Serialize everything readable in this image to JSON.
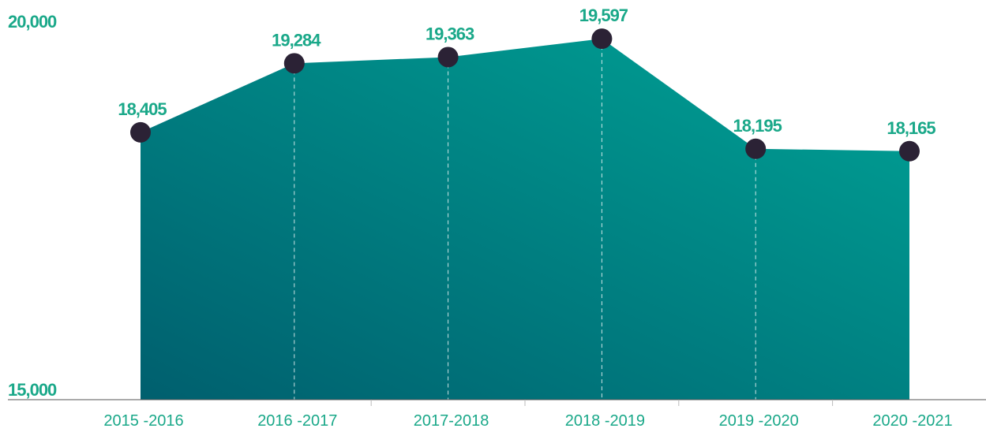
{
  "chart_data": {
    "type": "area",
    "categories": [
      "2015 -2016",
      "2016 -2017",
      "2017-2018",
      "2018 -2019",
      "2019 -2020",
      "2020 -2021"
    ],
    "values": [
      18405,
      19284,
      19363,
      19597,
      18195,
      18165
    ],
    "value_labels": [
      "18,405",
      "19,284",
      "19,363",
      "19,597",
      "18,195",
      "18,165"
    ],
    "ylim": [
      15000,
      20000
    ],
    "yticks": [
      {
        "value": 15000,
        "label": "15,000"
      },
      {
        "value": 20000,
        "label": "20,000"
      }
    ],
    "color": "#00a396",
    "marker_color": "#2b2235",
    "grid": false
  }
}
